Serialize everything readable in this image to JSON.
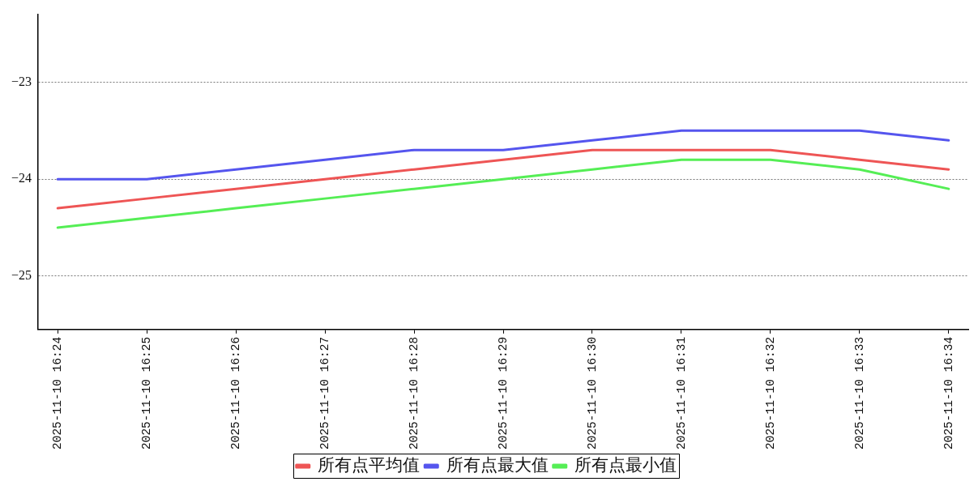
{
  "chart_data": {
    "type": "line",
    "categories": [
      "2025-11-10 16:24",
      "2025-11-10 16:25",
      "2025-11-10 16:26",
      "2025-11-10 16:27",
      "2025-11-10 16:28",
      "2025-11-10 16:29",
      "2025-11-10 16:30",
      "2025-11-10 16:31",
      "2025-11-10 16:32",
      "2025-11-10 16:33",
      "2025-11-10 16:34"
    ],
    "series": [
      {
        "name": "所有点平均值",
        "color": "#ee5555",
        "values": [
          -24.3,
          -24.2,
          -24.1,
          -24.0,
          -23.9,
          -23.8,
          -23.7,
          -23.7,
          -23.7,
          -23.8,
          -23.9
        ]
      },
      {
        "name": "所有点最大值",
        "color": "#5555ee",
        "values": [
          -24.0,
          -24.0,
          -23.9,
          -23.8,
          -23.7,
          -23.7,
          -23.6,
          -23.5,
          -23.5,
          -23.5,
          -23.6
        ]
      },
      {
        "name": "所有点最小值",
        "color": "#55ee55",
        "values": [
          -24.5,
          -24.4,
          -24.3,
          -24.2,
          -24.1,
          -24.0,
          -23.9,
          -23.8,
          -23.8,
          -23.9,
          -24.1
        ]
      }
    ],
    "ylim": [
      -25.55,
      -22.3
    ],
    "yticks": [
      -25,
      -24,
      -23
    ],
    "grid": "y",
    "legend": "bottom",
    "marker": "none",
    "line_style": "solid"
  }
}
